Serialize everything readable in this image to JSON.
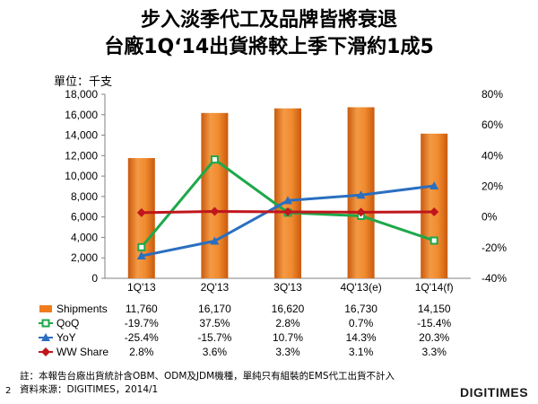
{
  "title_line1": "步入淡季代工及品牌皆將衰退",
  "title_line2": "台廠1Q‘14出貨將較上季下滑約1成5",
  "unit_label": "單位：千支",
  "footnote_line1": "註：本報告台廠出貨統計含OBM、ODM及JDM機種，單純只有組裝的EMS代工出貨不計入",
  "footnote_line2": "資料來源：DIGITIMES，2014/1",
  "page_number": "2",
  "logo_text": "DIGITIMES",
  "chart_data": {
    "type": "bar",
    "categories": [
      "1Q'13",
      "2Q'13",
      "3Q'13",
      "4Q'13(e)",
      "1Q'14(f)"
    ],
    "y_left": {
      "min": 0,
      "max": 18000,
      "step": 2000,
      "ticks": [
        "0",
        "2,000",
        "4,000",
        "6,000",
        "8,000",
        "10,000",
        "12,000",
        "14,000",
        "16,000",
        "18,000"
      ]
    },
    "y_right": {
      "min": -40,
      "max": 80,
      "step": 20,
      "ticks": [
        "-40%",
        "-20%",
        "0%",
        "20%",
        "40%",
        "60%",
        "80%"
      ]
    },
    "series": [
      {
        "name": "Shipments",
        "kind": "bar",
        "axis": "left",
        "color": "#f07c1e",
        "values": [
          11760,
          16170,
          16620,
          16730,
          14150
        ],
        "labels": [
          "11,760",
          "16,170",
          "16,620",
          "16,730",
          "14,150"
        ]
      },
      {
        "name": "QoQ",
        "kind": "line",
        "axis": "right",
        "color": "#1ea84a",
        "marker": "square",
        "values": [
          -19.7,
          37.5,
          2.8,
          0.7,
          -15.4
        ],
        "labels": [
          "-19.7%",
          "37.5%",
          "2.8%",
          "0.7%",
          "-15.4%"
        ]
      },
      {
        "name": "YoY",
        "kind": "line",
        "axis": "right",
        "color": "#2a6fc0",
        "marker": "triangle",
        "values": [
          -25.4,
          -15.7,
          10.7,
          14.3,
          20.3
        ],
        "labels": [
          "-25.4%",
          "-15.7%",
          "10.7%",
          "14.3%",
          "20.3%"
        ]
      },
      {
        "name": "WW Share",
        "kind": "line",
        "axis": "right",
        "color": "#c0161c",
        "marker": "diamond",
        "values": [
          2.8,
          3.6,
          3.3,
          3.1,
          3.3
        ],
        "labels": [
          "2.8%",
          "3.6%",
          "3.3%",
          "3.1%",
          "3.3%"
        ]
      }
    ]
  }
}
